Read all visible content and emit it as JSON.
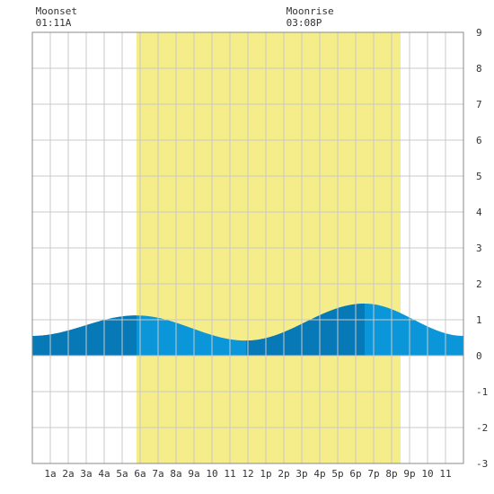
{
  "chart_data": {
    "type": "area",
    "title": "",
    "xlabel": "",
    "ylabel": "",
    "xlim": [
      0,
      24
    ],
    "ylim": [
      -3,
      9
    ],
    "grid": true,
    "y_ticks": [
      "-3",
      "-2",
      "-1",
      "0",
      "1",
      "2",
      "3",
      "4",
      "5",
      "6",
      "7",
      "8",
      "9"
    ],
    "x_ticks": [
      {
        "hour": 1,
        "label": "1a"
      },
      {
        "hour": 2,
        "label": "2a"
      },
      {
        "hour": 3,
        "label": "3a"
      },
      {
        "hour": 4,
        "label": "4a"
      },
      {
        "hour": 5,
        "label": "5a"
      },
      {
        "hour": 6,
        "label": "6a"
      },
      {
        "hour": 7,
        "label": "7a"
      },
      {
        "hour": 8,
        "label": "8a"
      },
      {
        "hour": 9,
        "label": "9a"
      },
      {
        "hour": 10,
        "label": "10"
      },
      {
        "hour": 11,
        "label": "11"
      },
      {
        "hour": 12,
        "label": "12"
      },
      {
        "hour": 13,
        "label": "1p"
      },
      {
        "hour": 14,
        "label": "2p"
      },
      {
        "hour": 15,
        "label": "3p"
      },
      {
        "hour": 16,
        "label": "4p"
      },
      {
        "hour": 17,
        "label": "5p"
      },
      {
        "hour": 18,
        "label": "6p"
      },
      {
        "hour": 19,
        "label": "7p"
      },
      {
        "hour": 20,
        "label": "8p"
      },
      {
        "hour": 21,
        "label": "9p"
      },
      {
        "hour": 22,
        "label": "10"
      },
      {
        "hour": 23,
        "label": "11"
      }
    ],
    "daylight": {
      "start": 5.8,
      "end": 20.5
    },
    "tide_extremes": [
      {
        "hour": 0,
        "height": 0.55
      },
      {
        "hour": 5.8,
        "height": 1.12
      },
      {
        "hour": 11.9,
        "height": 0.42
      },
      {
        "hour": 18.5,
        "height": 1.45
      },
      {
        "hour": 24,
        "height": 0.55
      }
    ],
    "dark_bands": [
      [
        0,
        5.8
      ],
      [
        11.9,
        18.5
      ]
    ],
    "annotations": [
      {
        "name": "moonset",
        "label": "Moonset",
        "time": "01:11A",
        "hour": 1.18
      },
      {
        "name": "moonrise",
        "label": "Moonrise",
        "time": "03:08P",
        "hour": 15.13
      }
    ],
    "colors": {
      "daylight": "#f5ec8a",
      "tide_light": "#0a96d8",
      "tide_dark": "#0779b6",
      "grid": "#c8c8c8",
      "border": "#888888"
    }
  }
}
